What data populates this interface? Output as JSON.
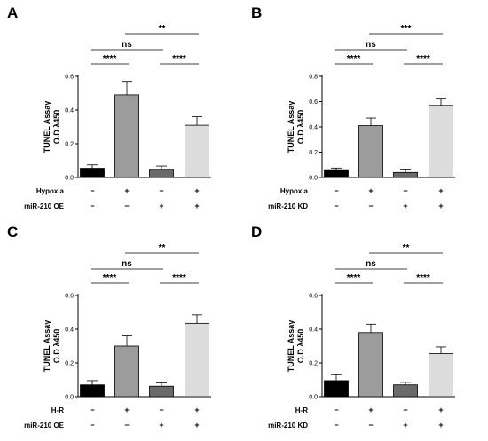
{
  "chart_data": [
    {
      "type": "bar",
      "panel": "A",
      "ylabel_line1": "TUNEL Assay",
      "ylabel_line2": "O.D λ450",
      "ylim": [
        0,
        0.6
      ],
      "yticks": [
        "0.0",
        "0.2",
        "0.4",
        "0.6"
      ],
      "yticks_values": [
        0,
        0.2,
        0.4,
        0.6
      ],
      "values": [
        0.055,
        0.49,
        0.048,
        0.31
      ],
      "errors": [
        0.02,
        0.08,
        0.02,
        0.05
      ],
      "bar_colors": [
        "#000000",
        "#9c9c9c",
        "#6a6a6a",
        "#dcdcdc"
      ],
      "conditions": [
        {
          "label": "Hypoxia",
          "signs": [
            "−",
            "+",
            "−",
            "+"
          ]
        },
        {
          "label": "miR-210 OE",
          "signs": [
            "−",
            "−",
            "+",
            "+"
          ]
        }
      ],
      "significance": [
        {
          "from": 0,
          "to": 1,
          "label": "****",
          "level": 0
        },
        {
          "from": 2,
          "to": 3,
          "label": "****",
          "level": 0
        },
        {
          "from": 0,
          "to": 2,
          "label": "ns",
          "level": 1
        },
        {
          "from": 1,
          "to": 3,
          "label": "**",
          "level": 2
        }
      ]
    },
    {
      "type": "bar",
      "panel": "B",
      "ylabel_line1": "TUNEL Assay",
      "ylabel_line2": "O.D λ450",
      "ylim": [
        0,
        0.8
      ],
      "yticks": [
        "0.0",
        "0.2",
        "0.4",
        "0.6",
        "0.8"
      ],
      "yticks_values": [
        0,
        0.2,
        0.4,
        0.6,
        0.8
      ],
      "values": [
        0.055,
        0.41,
        0.04,
        0.57
      ],
      "errors": [
        0.02,
        0.06,
        0.02,
        0.05
      ],
      "bar_colors": [
        "#000000",
        "#9c9c9c",
        "#6a6a6a",
        "#dcdcdc"
      ],
      "conditions": [
        {
          "label": "Hypoxia",
          "signs": [
            "−",
            "+",
            "−",
            "+"
          ]
        },
        {
          "label": "miR-210 KD",
          "signs": [
            "−",
            "−",
            "+",
            "+"
          ]
        }
      ],
      "significance": [
        {
          "from": 0,
          "to": 1,
          "label": "****",
          "level": 0
        },
        {
          "from": 2,
          "to": 3,
          "label": "****",
          "level": 0
        },
        {
          "from": 0,
          "to": 2,
          "label": "ns",
          "level": 1
        },
        {
          "from": 1,
          "to": 3,
          "label": "***",
          "level": 2
        }
      ]
    },
    {
      "type": "bar",
      "panel": "C",
      "ylabel_line1": "TUNEL Assay",
      "ylabel_line2": "O.D λ450",
      "ylim": [
        0,
        0.6
      ],
      "yticks": [
        "0.0",
        "0.2",
        "0.4",
        "0.6"
      ],
      "yticks_values": [
        0,
        0.2,
        0.4,
        0.6
      ],
      "values": [
        0.07,
        0.3,
        0.062,
        0.435
      ],
      "errors": [
        0.025,
        0.06,
        0.02,
        0.05
      ],
      "bar_colors": [
        "#000000",
        "#9c9c9c",
        "#6a6a6a",
        "#dcdcdc"
      ],
      "conditions": [
        {
          "label": "H-R",
          "signs": [
            "−",
            "+",
            "−",
            "+"
          ]
        },
        {
          "label": "miR-210 OE",
          "signs": [
            "−",
            "−",
            "+",
            "+"
          ]
        }
      ],
      "significance": [
        {
          "from": 0,
          "to": 1,
          "label": "****",
          "level": 0
        },
        {
          "from": 2,
          "to": 3,
          "label": "****",
          "level": 0
        },
        {
          "from": 0,
          "to": 2,
          "label": "ns",
          "level": 1
        },
        {
          "from": 1,
          "to": 3,
          "label": "**",
          "level": 2
        }
      ]
    },
    {
      "type": "bar",
      "panel": "D",
      "ylabel_line1": "TUNEL Assay",
      "ylabel_line2": "O.D λ450",
      "ylim": [
        0,
        0.6
      ],
      "yticks": [
        "0.0",
        "0.2",
        "0.4",
        "0.6"
      ],
      "yticks_values": [
        0,
        0.2,
        0.4,
        0.6
      ],
      "values": [
        0.095,
        0.38,
        0.07,
        0.255
      ],
      "errors": [
        0.035,
        0.05,
        0.015,
        0.04
      ],
      "bar_colors": [
        "#000000",
        "#9c9c9c",
        "#6a6a6a",
        "#dcdcdc"
      ],
      "conditions": [
        {
          "label": "H-R",
          "signs": [
            "−",
            "+",
            "−",
            "+"
          ]
        },
        {
          "label": "miR-210 KD",
          "signs": [
            "−",
            "−",
            "+",
            "+"
          ]
        }
      ],
      "significance": [
        {
          "from": 0,
          "to": 1,
          "label": "****",
          "level": 0
        },
        {
          "from": 2,
          "to": 3,
          "label": "****",
          "level": 0
        },
        {
          "from": 0,
          "to": 2,
          "label": "ns",
          "level": 1
        },
        {
          "from": 1,
          "to": 3,
          "label": "**",
          "level": 2
        }
      ]
    }
  ]
}
